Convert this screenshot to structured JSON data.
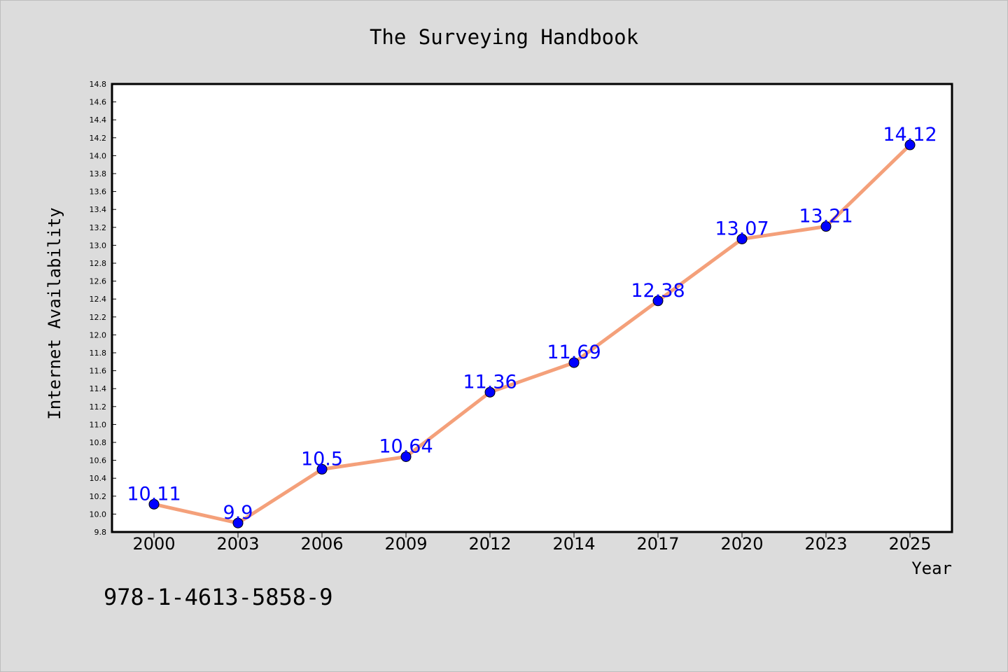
{
  "chart_data": {
    "type": "line",
    "title": "The Surveying Handbook",
    "xlabel": "Year",
    "ylabel": "Internet Availability",
    "categories": [
      "2000",
      "2003",
      "2006",
      "2009",
      "2012",
      "2014",
      "2017",
      "2020",
      "2023",
      "2025"
    ],
    "series": [
      {
        "values": [
          10.11,
          9.9,
          10.5,
          10.64,
          11.36,
          11.69,
          12.38,
          13.07,
          13.21,
          14.12
        ],
        "labels": [
          "10.11",
          "9.9",
          "10.5",
          "10.64",
          "11.36",
          "11.69",
          "12.38",
          "13.07",
          "13.21",
          "14.12"
        ]
      }
    ],
    "ylim": [
      9.8,
      14.8
    ],
    "ytick_step": 0.2,
    "grid": false,
    "legend": "none",
    "colors": {
      "line": "#f4a07a",
      "marker": "#0000ff",
      "data_label": "#0000ff",
      "background": "#dcdcdc",
      "plot_area": "#ffffff"
    }
  },
  "annotation": "978-1-4613-5858-9"
}
